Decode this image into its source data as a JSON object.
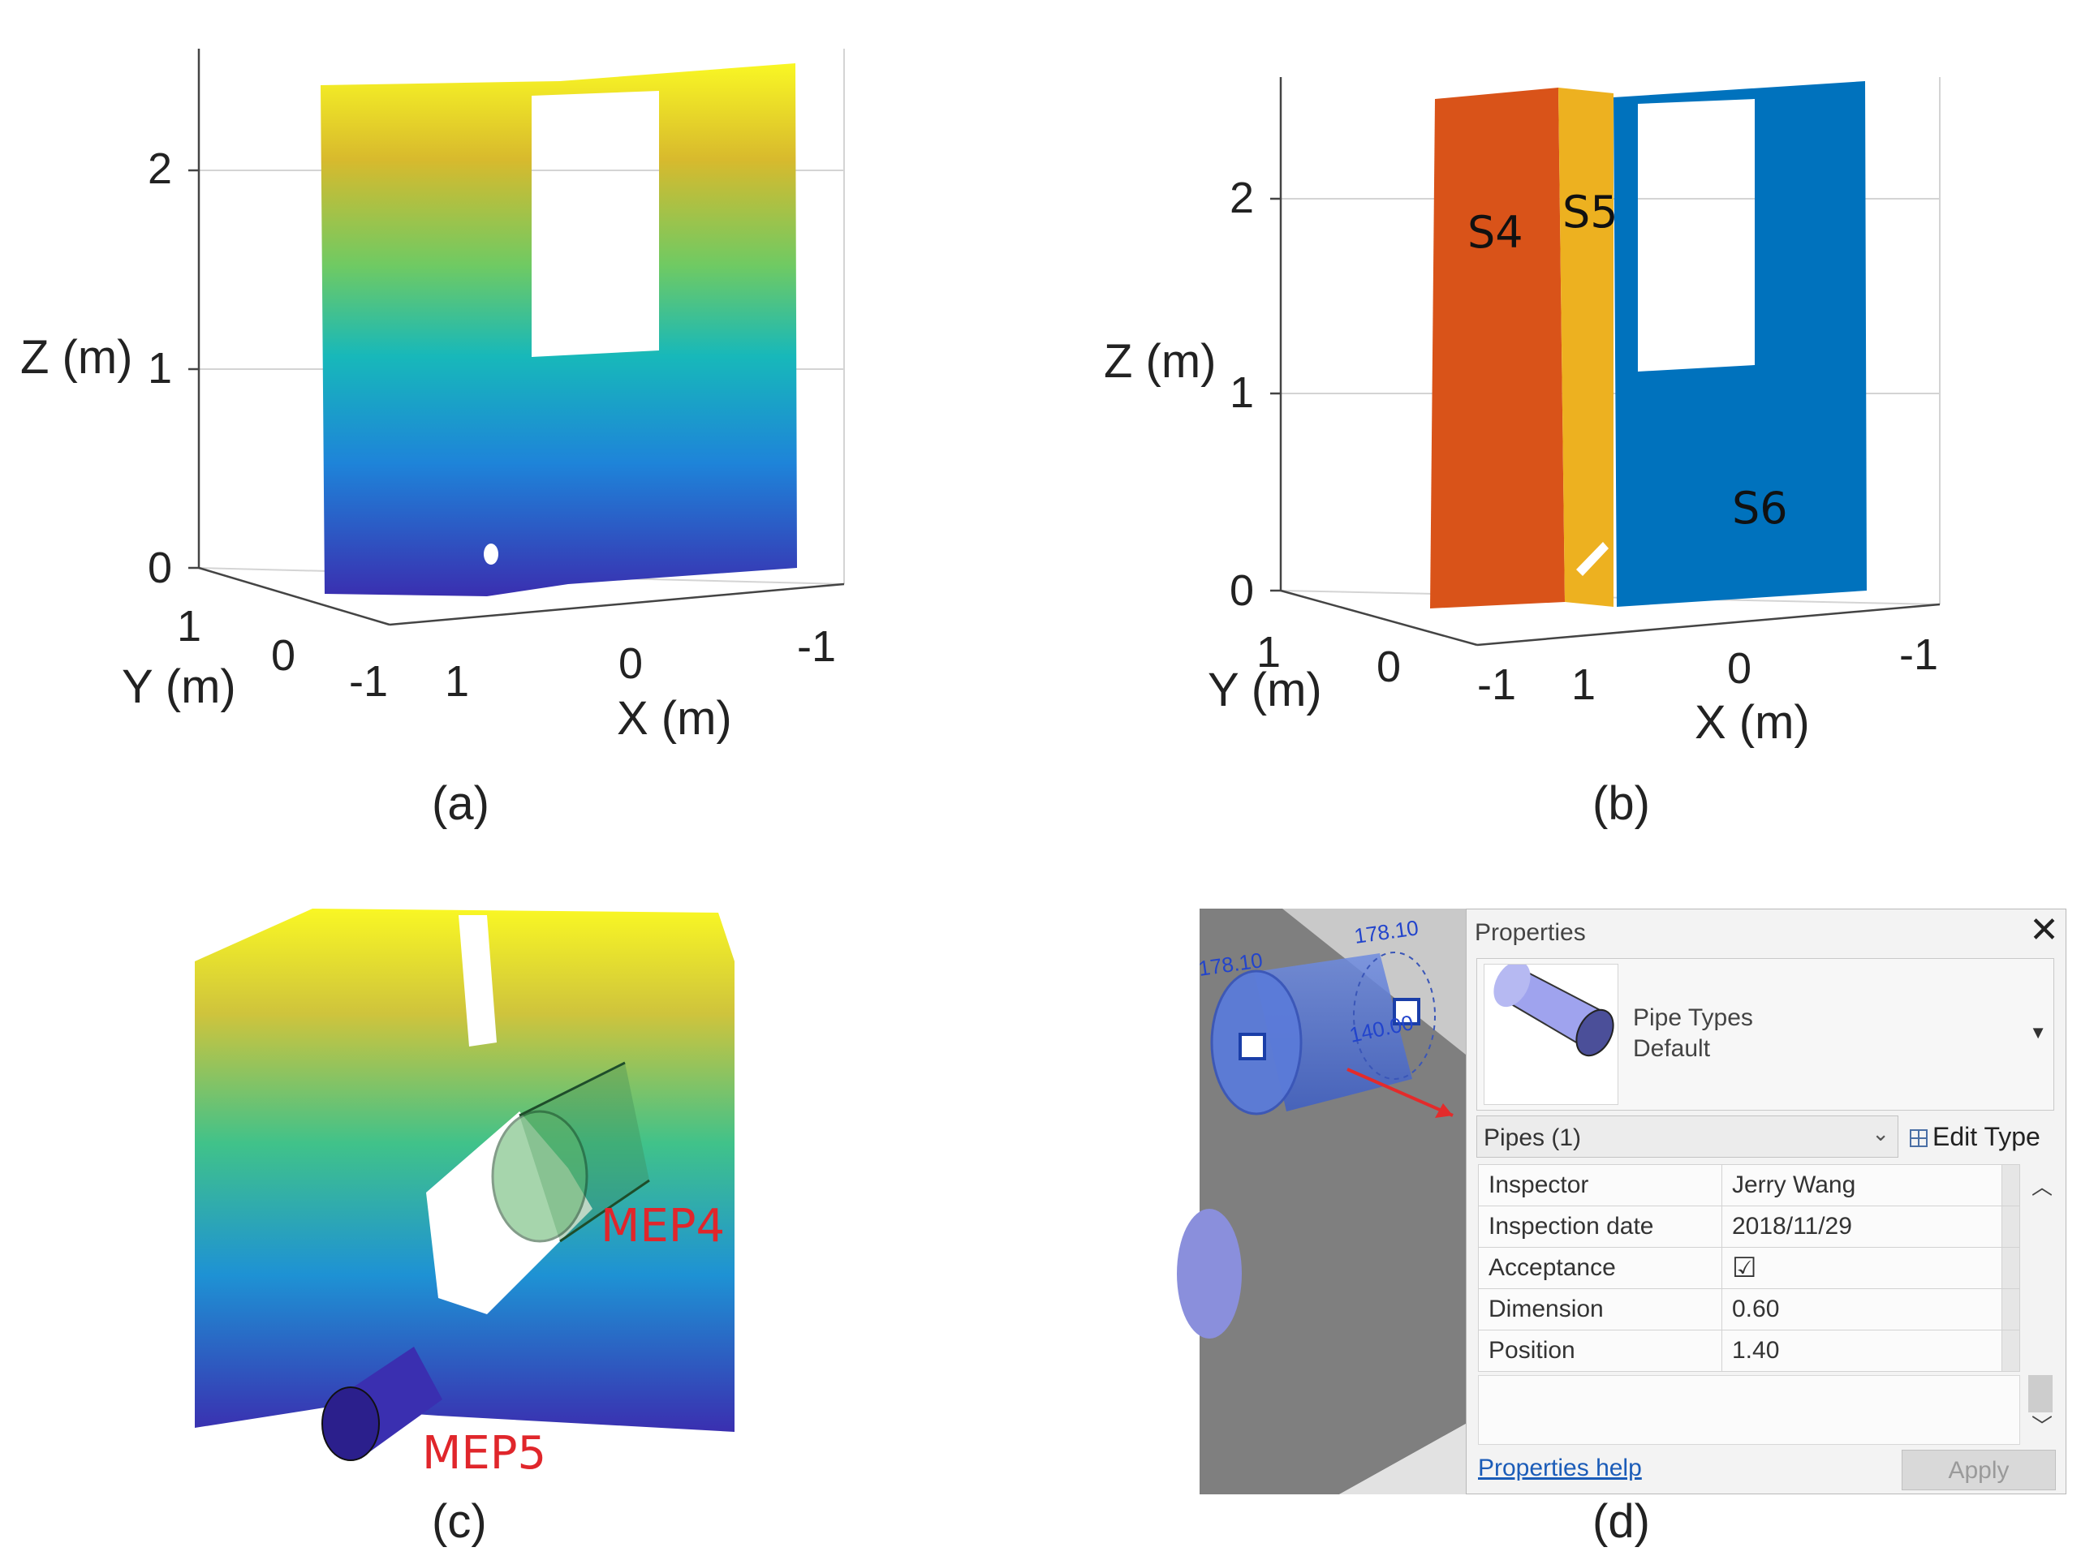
{
  "panel_a": {
    "caption": "(a)",
    "zlabel": "Z (m)",
    "ylabel": "Y (m)",
    "xlabel": "X (m)",
    "zticks": [
      "2",
      "1",
      "0"
    ],
    "yticks": [
      "1",
      "0",
      "-1"
    ],
    "xticks": [
      "1",
      "0",
      "-1"
    ]
  },
  "panel_b": {
    "caption": "(b)",
    "zlabel": "Z (m)",
    "ylabel": "Y (m)",
    "xlabel": "X (m)",
    "zticks": [
      "2",
      "1",
      "0"
    ],
    "yticks": [
      "1",
      "0",
      "-1"
    ],
    "xticks": [
      "1",
      "0",
      "-1"
    ],
    "segments": [
      {
        "label": "S4",
        "color": "#d95319"
      },
      {
        "label": "S5",
        "color": "#edb120"
      },
      {
        "label": "S6",
        "color": "#0072bd"
      }
    ]
  },
  "panel_c": {
    "caption": "(c)",
    "labels": [
      "MEP4",
      "MEP5"
    ],
    "label_color": "#e0262b"
  },
  "panel_d": {
    "caption": "(d)",
    "dims": [
      "178.10",
      "178.10",
      "140.00"
    ],
    "properties": {
      "title": "Properties",
      "close_glyph": "✕",
      "type_name": "Pipe Types",
      "type_sub": "Default",
      "selector_value": "Pipes (1)",
      "edit_type_label": "Edit Type",
      "rows": [
        {
          "key": "Inspector",
          "value": "Jerry Wang"
        },
        {
          "key": "Inspection date",
          "value": "2018/11/29"
        },
        {
          "key": "Acceptance",
          "value": "☑"
        },
        {
          "key": "Dimension",
          "value": "0.60"
        },
        {
          "key": "Position",
          "value": "1.40"
        }
      ],
      "help_link": "Properties help",
      "apply_label": "Apply"
    }
  },
  "colors": {
    "parula": [
      "#3e26a8",
      "#1f8ad6",
      "#13bcb5",
      "#7ecb5a",
      "#f9e722"
    ],
    "revit_pipe": "#4a6fcf",
    "revit_bg": "#7f7f7f"
  }
}
